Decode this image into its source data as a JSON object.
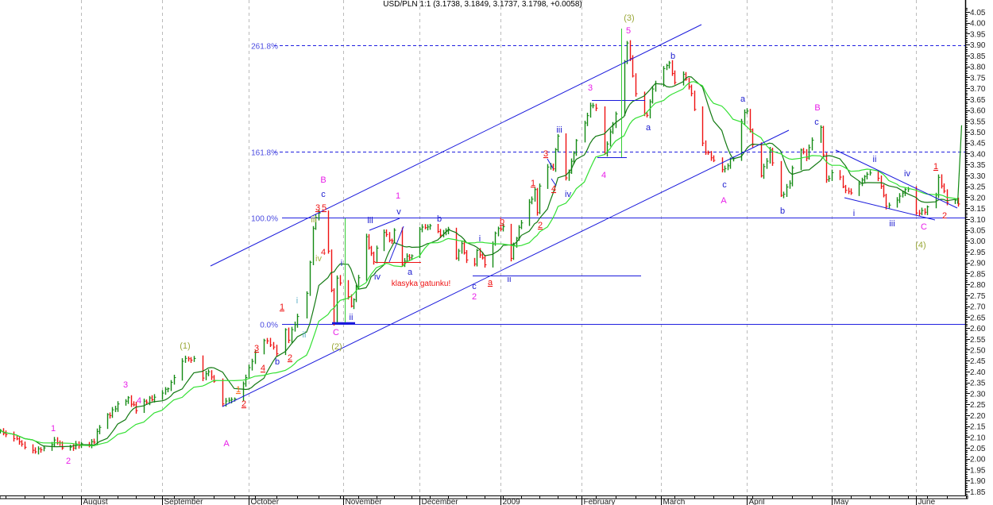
{
  "chart_data": {
    "type": "ohlc",
    "title": "USD/PLN 1:1 (3.1738, 3.1849, 3.1737, 3.1798, +0.0058)",
    "xlabel": "",
    "ylabel": "",
    "ylim": [
      1.83,
      4.07
    ],
    "xlim": [
      "2008-07-01",
      "2009-06-18"
    ],
    "grid": "vertical dashed month separators",
    "colors": {
      "up": "#138a13",
      "down": "#ee1111",
      "ma_fast": "#137a13",
      "ma_slow": "#33e033",
      "fib": "#2020e0",
      "channel": "#1a1adc",
      "axis": "#000000"
    },
    "yticks": [
      "4.05",
      "4.00",
      "3.95",
      "3.90",
      "3.85",
      "3.80",
      "3.75",
      "3.70",
      "3.65",
      "3.60",
      "3.55",
      "3.50",
      "3.45",
      "3.40",
      "3.35",
      "3.30",
      "3.25",
      "3.20",
      "3.15",
      "3.10",
      "3.05",
      "3.00",
      "2.95",
      "2.90",
      "2.85",
      "2.80",
      "2.75",
      "2.70",
      "2.65",
      "2.60",
      "2.55",
      "2.50",
      "2.45",
      "2.40",
      "2.35",
      "2.30",
      "2.25",
      "2.20",
      "2.15",
      "2.10",
      "2.05",
      "2.00",
      "1.95",
      "1.90",
      "1.85"
    ],
    "xticks": [
      {
        "label": "August",
        "date": "2008-08-01"
      },
      {
        "label": "September",
        "date": "2008-09-01"
      },
      {
        "label": "October",
        "date": "2008-10-01"
      },
      {
        "label": "November",
        "date": "2008-11-01"
      },
      {
        "label": "December",
        "date": "2008-12-01"
      },
      {
        "label": "2009",
        "date": "2009-01-01"
      },
      {
        "label": "February",
        "date": "2009-02-01"
      },
      {
        "label": "March",
        "date": "2009-03-01"
      },
      {
        "label": "April",
        "date": "2009-04-01"
      },
      {
        "label": "May",
        "date": "2009-05-01"
      },
      {
        "label": "June",
        "date": "2009-06-01"
      }
    ],
    "fib_levels": [
      {
        "label": "261.8%",
        "value": 3.898,
        "style": "dashed"
      },
      {
        "label": "161.8%",
        "value": 3.41,
        "style": "dashed"
      },
      {
        "label": "100.0%",
        "value": 3.108,
        "style": "solid"
      },
      {
        "label": "0.0%",
        "value": 2.62,
        "style": "solid"
      }
    ],
    "moving_averages": [
      {
        "period": 10
      },
      {
        "period": 20
      }
    ],
    "series": [
      [
        "2008-07-02",
        2.13
      ],
      [
        "2008-07-15",
        2.03
      ],
      [
        "2008-07-22",
        2.08
      ],
      [
        "2008-07-26",
        2.05
      ],
      [
        "2008-07-31",
        2.06
      ],
      [
        "2008-08-06",
        2.08
      ],
      [
        "2008-08-09",
        2.18
      ],
      [
        "2008-08-12",
        2.21
      ],
      [
        "2008-08-19",
        2.28
      ],
      [
        "2008-08-22",
        2.22
      ],
      [
        "2008-08-27",
        2.28
      ],
      [
        "2008-08-30",
        2.27
      ],
      [
        "2008-09-03",
        2.33
      ],
      [
        "2008-09-09",
        2.46
      ],
      [
        "2008-09-13",
        2.46
      ],
      [
        "2008-09-14",
        2.35
      ],
      [
        "2008-09-17",
        2.4
      ],
      [
        "2008-09-21",
        2.32
      ],
      [
        "2008-09-22",
        2.25
      ],
      [
        "2008-09-27",
        2.29
      ],
      [
        "2008-09-30",
        2.37
      ],
      [
        "2008-10-03",
        2.49
      ],
      [
        "2008-10-06",
        2.55
      ],
      [
        "2008-10-10",
        2.49
      ],
      [
        "2008-10-11",
        2.68
      ],
      [
        "2008-10-14",
        2.55
      ],
      [
        "2008-10-18",
        2.68
      ],
      [
        "2008-10-19",
        2.64
      ],
      [
        "2008-10-21",
        2.9
      ],
      [
        "2008-10-22",
        3.06
      ],
      [
        "2008-10-24",
        3.13
      ],
      [
        "2008-10-26",
        2.98
      ],
      [
        "2008-10-27",
        2.95
      ],
      [
        "2008-10-29",
        2.62
      ],
      [
        "2008-10-30",
        2.83
      ],
      [
        "2008-11-01",
        2.76
      ],
      [
        "2008-11-02",
        2.8
      ],
      [
        "2008-11-04",
        2.7
      ],
      [
        "2008-11-06",
        2.78
      ],
      [
        "2008-11-08",
        2.88
      ],
      [
        "2008-11-10",
        3.01
      ],
      [
        "2008-11-13",
        2.91
      ],
      [
        "2008-11-16",
        3.05
      ],
      [
        "2008-11-20",
        3.0
      ],
      [
        "2008-11-22",
        3.1
      ],
      [
        "2008-11-23",
        2.86
      ],
      [
        "2008-11-26",
        2.93
      ],
      [
        "2008-11-29",
        2.93
      ],
      [
        "2008-12-01",
        3.05
      ],
      [
        "2008-12-06",
        3.08
      ],
      [
        "2008-12-09",
        3.02
      ],
      [
        "2008-12-12",
        3.06
      ],
      [
        "2008-12-14",
        2.89
      ],
      [
        "2008-12-17",
        2.98
      ],
      [
        "2008-12-21",
        2.85
      ],
      [
        "2008-12-23",
        2.95
      ],
      [
        "2008-12-27",
        2.88
      ],
      [
        "2008-12-30",
        3.04
      ],
      [
        "2009-01-02",
        3.06
      ],
      [
        "2009-01-04",
        2.88
      ],
      [
        "2009-01-06",
        2.98
      ],
      [
        "2009-01-10",
        3.12
      ],
      [
        "2009-01-14",
        3.23
      ],
      [
        "2009-01-15",
        3.13
      ],
      [
        "2009-01-17",
        3.35
      ],
      [
        "2009-01-21",
        3.34
      ],
      [
        "2009-01-23",
        3.48
      ],
      [
        "2009-01-26",
        3.28
      ],
      [
        "2009-01-30",
        3.45
      ],
      [
        "2009-02-03",
        3.57
      ],
      [
        "2009-02-04",
        3.63
      ],
      [
        "2009-02-06",
        3.61
      ],
      [
        "2009-02-09",
        3.39
      ],
      [
        "2009-02-11",
        3.5
      ],
      [
        "2009-02-13",
        3.58
      ],
      [
        "2009-02-15",
        3.74
      ],
      [
        "2009-02-17",
        3.9
      ],
      [
        "2009-02-18",
        3.84
      ],
      [
        "2009-02-20",
        3.68
      ],
      [
        "2009-02-21",
        3.77
      ],
      [
        "2009-02-23",
        3.58
      ],
      [
        "2009-02-24",
        3.57
      ],
      [
        "2009-02-26",
        3.7
      ],
      [
        "2009-03-01",
        3.78
      ],
      [
        "2009-03-04",
        3.81
      ],
      [
        "2009-03-06",
        3.73
      ],
      [
        "2009-03-09",
        3.77
      ],
      [
        "2009-03-12",
        3.67
      ],
      [
        "2009-03-15",
        3.49
      ],
      [
        "2009-03-17",
        3.41
      ],
      [
        "2009-03-21",
        3.35
      ],
      [
        "2009-03-24",
        3.33
      ],
      [
        "2009-03-27",
        3.38
      ],
      [
        "2009-03-31",
        3.6
      ],
      [
        "2009-04-01",
        3.59
      ],
      [
        "2009-04-02",
        3.51
      ],
      [
        "2009-04-05",
        3.27
      ],
      [
        "2009-04-09",
        3.41
      ],
      [
        "2009-04-13",
        3.2
      ],
      [
        "2009-04-16",
        3.27
      ],
      [
        "2009-04-19",
        3.43
      ],
      [
        "2009-04-22",
        3.39
      ],
      [
        "2009-04-25",
        3.5
      ],
      [
        "2009-04-27",
        3.51
      ],
      [
        "2009-04-29",
        3.28
      ],
      [
        "2009-05-03",
        3.34
      ],
      [
        "2009-05-05",
        3.24
      ],
      [
        "2009-05-09",
        3.22
      ],
      [
        "2009-05-14",
        3.31
      ],
      [
        "2009-05-17",
        3.33
      ],
      [
        "2009-05-21",
        3.16
      ],
      [
        "2009-05-26",
        3.2
      ],
      [
        "2009-05-30",
        3.26
      ],
      [
        "2009-06-01",
        3.13
      ],
      [
        "2009-06-04",
        3.13
      ],
      [
        "2009-06-08",
        3.22
      ],
      [
        "2009-06-09",
        3.29
      ],
      [
        "2009-06-12",
        3.18
      ],
      [
        "2009-06-14",
        3.19
      ],
      [
        "2009-06-16",
        3.18
      ]
    ],
    "projection": [
      [
        "2009-06-16",
        3.17
      ],
      [
        "2009-06-18",
        3.53
      ]
    ],
    "annotations": [
      {
        "text": "1",
        "color": "#e81ee8"
      },
      {
        "text": "2",
        "color": "#e81ee8"
      },
      {
        "text": "3",
        "color": "#e81ee8"
      },
      {
        "text": "4",
        "color": "#e81ee8"
      },
      {
        "text": "(1)",
        "color": "#9aa838"
      },
      {
        "text": "A",
        "color": "#e81ee8"
      },
      {
        "text": "1",
        "color": "#ff6a1a",
        "underline": true
      },
      {
        "text": "2",
        "color": "#ee1111",
        "underline": true
      },
      {
        "text": "3",
        "color": "#ee1111",
        "underline": true
      },
      {
        "text": "4",
        "color": "#ee1111",
        "underline": true
      },
      {
        "text": "b",
        "color": "#2020d0"
      },
      {
        "text": "1",
        "color": "#ee1111",
        "underline": true
      },
      {
        "text": "2",
        "color": "#ee1111",
        "underline": true
      },
      {
        "text": "i",
        "color": "#5fb0c8"
      },
      {
        "text": "ii",
        "color": "#5fb0c8"
      },
      {
        "text": "iii",
        "color": "#a8b040"
      },
      {
        "text": "iv",
        "color": "#a8b040"
      },
      {
        "text": "3",
        "color": "#ee1111",
        "underline": true
      },
      {
        "text": "5",
        "color": "#ee1111",
        "underline": true
      },
      {
        "text": "4",
        "color": "#ee1111"
      },
      {
        "text": "c",
        "color": "#2020d0"
      },
      {
        "text": "B",
        "color": "#e81ee8"
      },
      {
        "text": "C",
        "color": "#e81ee8"
      },
      {
        "text": "(2)",
        "color": "#9aa838"
      },
      {
        "text": "i",
        "color": "#2020d0"
      },
      {
        "text": "ii",
        "color": "#2020d0"
      },
      {
        "text": "iii",
        "color": "#2020d0"
      },
      {
        "text": "iv",
        "color": "#2020d0"
      },
      {
        "text": "1",
        "color": "#e81ee8"
      },
      {
        "text": "v",
        "color": "#2020d0"
      },
      {
        "text": "a",
        "color": "#2020d0"
      },
      {
        "text": "klasyka gatunku!",
        "color": "#ee1111"
      },
      {
        "text": "b",
        "color": "#2020d0"
      },
      {
        "text": "i",
        "color": "#2020d0"
      },
      {
        "text": "c",
        "color": "#2020d0"
      },
      {
        "text": "2",
        "color": "#e81ee8"
      },
      {
        "text": "a",
        "color": "#ee1111",
        "underline": true
      },
      {
        "text": "b",
        "color": "#ee1111",
        "underline": true
      },
      {
        "text": "ii",
        "color": "#2020d0"
      },
      {
        "text": "1",
        "color": "#ee1111",
        "underline": true
      },
      {
        "text": "2",
        "color": "#ee1111",
        "underline": true
      },
      {
        "text": "3",
        "color": "#ee1111",
        "underline": true
      },
      {
        "text": "4",
        "color": "#ee1111",
        "underline": true
      },
      {
        "text": "iii",
        "color": "#2020d0"
      },
      {
        "text": "iv",
        "color": "#2020d0"
      },
      {
        "text": "3",
        "color": "#e81ee8"
      },
      {
        "text": "4",
        "color": "#e81ee8"
      },
      {
        "text": "(3)",
        "color": "#9aa838"
      },
      {
        "text": "5",
        "color": "#e81ee8"
      },
      {
        "text": "a",
        "color": "#2020d0"
      },
      {
        "text": "b",
        "color": "#2020d0"
      },
      {
        "text": "c",
        "color": "#2020d0"
      },
      {
        "text": "A",
        "color": "#e81ee8"
      },
      {
        "text": "a",
        "color": "#2020d0"
      },
      {
        "text": "b",
        "color": "#2020d0"
      },
      {
        "text": "c",
        "color": "#2020d0"
      },
      {
        "text": "B",
        "color": "#e81ee8"
      },
      {
        "text": "i",
        "color": "#2020d0"
      },
      {
        "text": "ii",
        "color": "#2020d0"
      },
      {
        "text": "iii",
        "color": "#2020d0"
      },
      {
        "text": "iv",
        "color": "#2020d0"
      },
      {
        "text": "C",
        "color": "#e81ee8"
      },
      {
        "text": "(4)",
        "color": "#9aa838"
      },
      {
        "text": "1",
        "color": "#ee1111",
        "underline": true
      },
      {
        "text": "2",
        "color": "#ee1111"
      }
    ]
  }
}
